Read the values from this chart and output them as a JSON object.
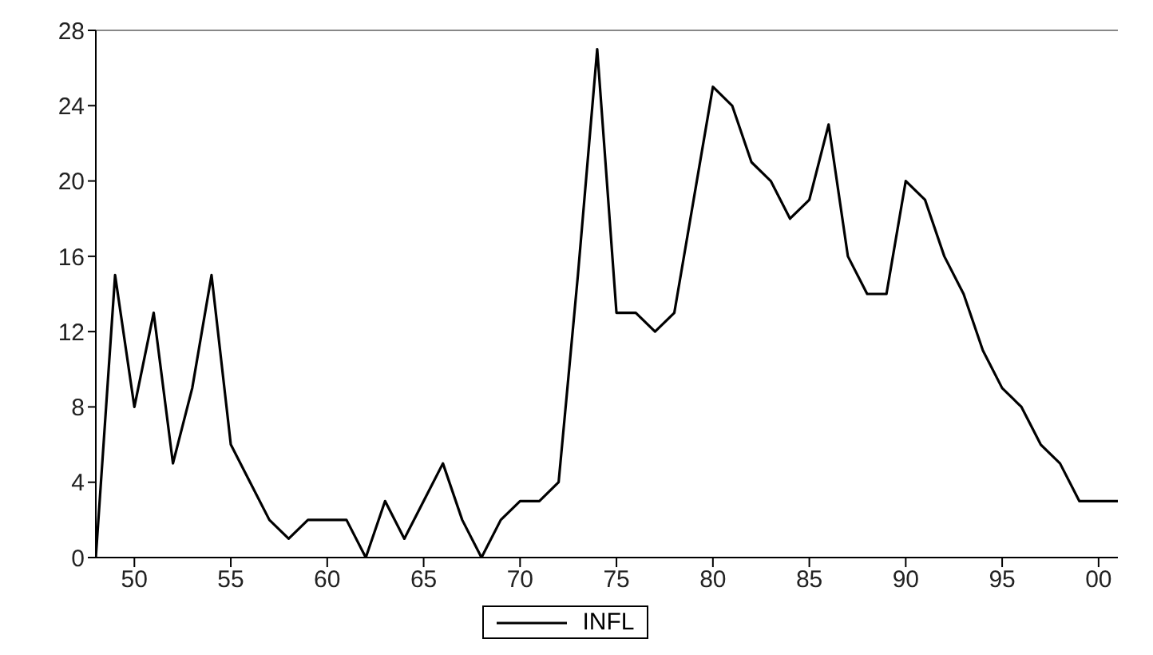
{
  "chart_data": {
    "type": "line",
    "x": [
      1948,
      1949,
      1950,
      1951,
      1952,
      1953,
      1954,
      1955,
      1956,
      1957,
      1958,
      1959,
      1960,
      1961,
      1962,
      1963,
      1964,
      1965,
      1966,
      1967,
      1968,
      1969,
      1970,
      1971,
      1972,
      1973,
      1974,
      1975,
      1976,
      1977,
      1978,
      1979,
      1980,
      1981,
      1982,
      1983,
      1984,
      1985,
      1986,
      1987,
      1988,
      1989,
      1990,
      1991,
      1992,
      1993,
      1994,
      1995,
      1996,
      1997,
      1998,
      1999,
      2000,
      2001
    ],
    "series": [
      {
        "name": "INFL",
        "color": "#000000",
        "values": [
          0,
          15,
          8,
          13,
          5,
          9,
          15,
          6,
          4,
          2,
          1,
          2,
          2,
          2,
          0,
          3,
          1,
          3,
          5,
          2,
          0,
          2,
          3,
          3,
          4,
          15,
          27,
          13,
          13,
          12,
          13,
          19,
          25,
          24,
          21,
          20,
          18,
          19,
          23,
          16,
          14,
          14,
          20,
          19,
          16,
          14,
          11,
          9,
          8,
          6,
          5,
          3,
          3,
          3
        ]
      }
    ],
    "xlim": [
      1948,
      2001
    ],
    "xticks": [
      {
        "value": 1950,
        "label": "50"
      },
      {
        "value": 1955,
        "label": "55"
      },
      {
        "value": 1960,
        "label": "60"
      },
      {
        "value": 1965,
        "label": "65"
      },
      {
        "value": 1970,
        "label": "70"
      },
      {
        "value": 1975,
        "label": "75"
      },
      {
        "value": 1980,
        "label": "80"
      },
      {
        "value": 1985,
        "label": "85"
      },
      {
        "value": 1990,
        "label": "90"
      },
      {
        "value": 1995,
        "label": "95"
      },
      {
        "value": 2000,
        "label": "00"
      }
    ],
    "ylim": [
      0,
      28
    ],
    "yticks": [
      0,
      4,
      8,
      12,
      16,
      20,
      24,
      28
    ],
    "legend": "bottom",
    "grid": false,
    "marker": "none",
    "line_style": "solid"
  }
}
